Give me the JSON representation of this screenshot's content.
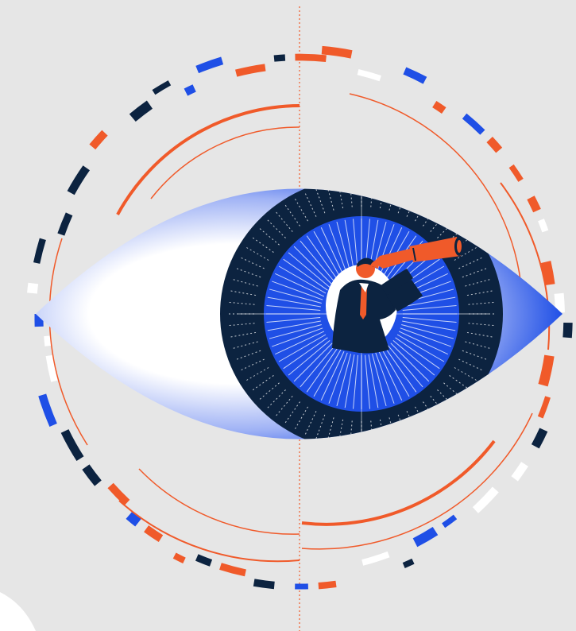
{
  "illustration": {
    "subject": "eye-with-man-holding-telescope",
    "colors": {
      "background": "#e6e6e6",
      "navy": "#0c2340",
      "blue": "#1f4fe6",
      "blue_light": "#6f8df5",
      "orange": "#f05a2a",
      "white": "#ffffff"
    },
    "icons": [
      "eye",
      "iris",
      "telescope",
      "man-figure",
      "segmented-ring"
    ]
  }
}
